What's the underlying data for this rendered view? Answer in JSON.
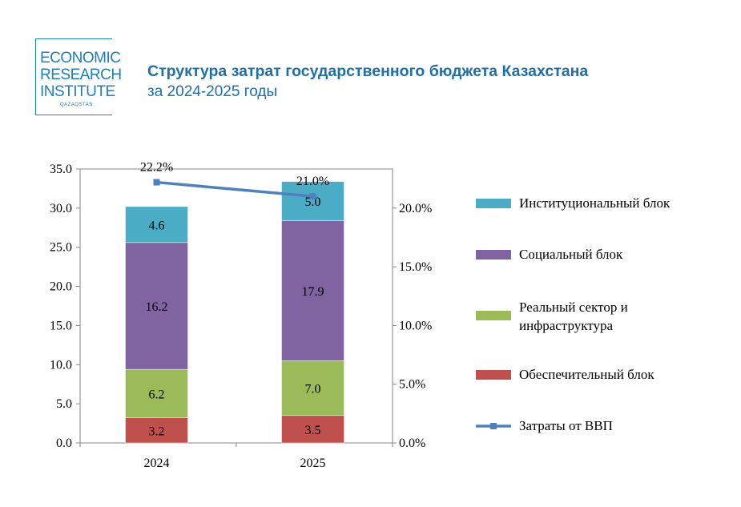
{
  "logo": {
    "line1": "ECONOMIC",
    "line2": "RESEARCH",
    "line3": "INSTITUTE",
    "sub": "QAZAQSTAN"
  },
  "header": {
    "title": "Структура затрат государственного бюджета Казахстана",
    "subtitle": "за 2024-2025 годы"
  },
  "colors": {
    "institutional": "#4bacc6",
    "social": "#8064a2",
    "real_sector": "#9bbb59",
    "support": "#c0504d",
    "gdp_line": "#4f81bd"
  },
  "chart_data": {
    "type": "bar",
    "stacked": true,
    "categories": [
      "2024",
      "2025"
    ],
    "series": [
      {
        "name": "Обеспечительный блок",
        "key": "support",
        "values": [
          3.2,
          3.5
        ],
        "labels": [
          "3.2",
          "3.5"
        ]
      },
      {
        "name": "Реальный сектор и инфраструктура",
        "key": "real_sector",
        "values": [
          6.2,
          7.0
        ],
        "labels": [
          "6.2",
          "7.0"
        ]
      },
      {
        "name": "Социальный блок",
        "key": "social",
        "values": [
          16.2,
          17.9
        ],
        "labels": [
          "16.2",
          "17.9"
        ]
      },
      {
        "name": "Институциональный блок",
        "key": "institutional",
        "values": [
          4.6,
          5.0
        ],
        "labels": [
          "4.6",
          "5.0"
        ]
      }
    ],
    "line_series": {
      "name": "Затраты от ВВП",
      "values": [
        22.2,
        21.0
      ],
      "labels": [
        "22.2%",
        "21.0%"
      ]
    },
    "ylim": [
      0,
      35
    ],
    "y_ticks": [
      "0.0",
      "5.0",
      "10.0",
      "15.0",
      "20.0",
      "25.0",
      "30.0",
      "35.0"
    ],
    "y2lim": [
      0,
      23.33
    ],
    "y2_ticks": [
      "0.0%",
      "5.0%",
      "10.0%",
      "15.0%",
      "20.0%"
    ],
    "legend": [
      {
        "key": "institutional",
        "lines": [
          "Институциональный блок"
        ]
      },
      {
        "key": "social",
        "lines": [
          "Социальный блок"
        ]
      },
      {
        "key": "real_sector",
        "lines": [
          "Реальный сектор и",
          "инфраструктура"
        ]
      },
      {
        "key": "support",
        "lines": [
          "Обеспечительный блок"
        ]
      },
      {
        "key": "gdp_line",
        "lines": [
          "Затраты от ВВП"
        ],
        "marker": "line"
      }
    ],
    "legend_position": "right"
  }
}
